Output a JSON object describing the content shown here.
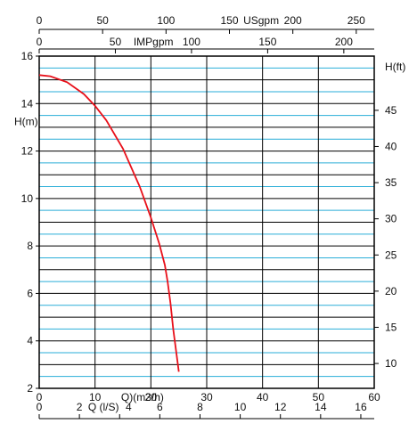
{
  "chart_data": {
    "type": "line",
    "title": "",
    "primary_x_axis": {
      "label": "Q)(m3/h)",
      "unit": "m3/h",
      "range": [
        0,
        60
      ],
      "ticks": [
        0,
        10,
        20,
        30,
        40,
        50,
        60
      ]
    },
    "secondary_x_axes": [
      {
        "name": "USgpm",
        "label": "USgpm",
        "ticks": [
          0,
          50,
          100,
          150,
          200,
          250
        ],
        "factor_per_m3h": 4.4029
      },
      {
        "name": "IMPgpm",
        "label": "IMPgpm",
        "ticks": [
          0,
          50,
          100,
          150,
          200
        ],
        "factor_per_m3h": 3.6662
      },
      {
        "name": "Q (l/s)",
        "label": "Q (l/S)",
        "ticks": [
          0,
          2,
          4,
          6,
          8,
          10,
          12,
          14,
          16
        ],
        "factor_per_m3h": 0.27778
      }
    ],
    "y_axis_left": {
      "label": "H(m)",
      "range": [
        2,
        16
      ],
      "ticks": [
        2,
        4,
        6,
        8,
        10,
        12,
        14,
        16
      ]
    },
    "y_axis_right": {
      "label": "H(ft)",
      "ticks": [
        10,
        15,
        20,
        25,
        30,
        35,
        40,
        45
      ],
      "factor_per_m": 3.2808
    },
    "grid": true,
    "colors": {
      "curve": "#e8101a",
      "major_grid": "#000000",
      "minor_grid": "#2aaed8"
    },
    "series": [
      {
        "x": [
          0,
          2,
          5,
          8,
          10,
          12,
          15,
          18,
          20,
          21.5,
          22.5,
          23,
          23.5,
          24,
          25
        ],
        "y": [
          15.2,
          15.15,
          14.9,
          14.4,
          13.9,
          13.3,
          12.1,
          10.5,
          9.2,
          8.1,
          7.2,
          6.5,
          5.6,
          4.5,
          2.7
        ]
      }
    ]
  }
}
